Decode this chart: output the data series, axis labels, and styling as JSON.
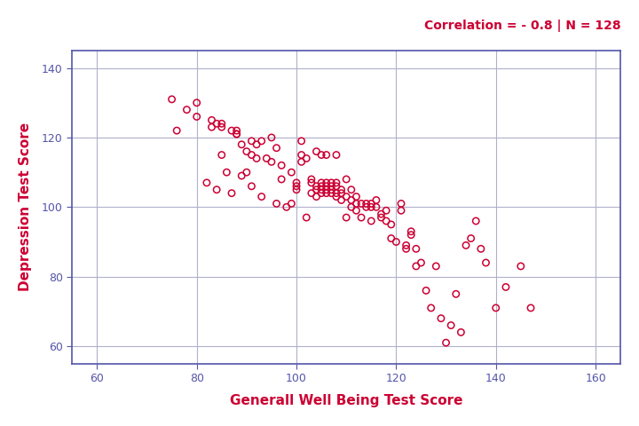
{
  "title_text": "Correlation = - 0.8 | N = 128",
  "title_color": "#CC0033",
  "xlabel": "Generall Well Being Test Score",
  "ylabel": "Depression Test Score",
  "axis_label_color": "#CC0033",
  "scatter_color": "#CC0033",
  "background_color": "#ffffff",
  "grid_color": "#b0b0cc",
  "spine_color": "#5555aa",
  "xlim": [
    55,
    165
  ],
  "ylim": [
    55,
    145
  ],
  "xticks": [
    60,
    80,
    100,
    120,
    140,
    160
  ],
  "yticks": [
    60,
    80,
    100,
    120,
    140
  ],
  "x": [
    75,
    76,
    80,
    82,
    84,
    85,
    85,
    86,
    87,
    88,
    89,
    90,
    91,
    91,
    92,
    93,
    93,
    94,
    95,
    95,
    96,
    96,
    97,
    97,
    98,
    99,
    99,
    100,
    100,
    100,
    101,
    101,
    101,
    102,
    102,
    103,
    103,
    103,
    104,
    104,
    104,
    104,
    105,
    105,
    105,
    105,
    105,
    106,
    106,
    106,
    106,
    106,
    107,
    107,
    107,
    107,
    108,
    108,
    108,
    108,
    108,
    109,
    109,
    109,
    110,
    110,
    110,
    111,
    111,
    111,
    112,
    112,
    112,
    113,
    113,
    114,
    114,
    115,
    115,
    115,
    116,
    116,
    117,
    117,
    118,
    118,
    119,
    119,
    120,
    121,
    121,
    122,
    122,
    123,
    123,
    124,
    124,
    125,
    126,
    127,
    128,
    129,
    130,
    131,
    132,
    133,
    134,
    135,
    136,
    137,
    138,
    140,
    142,
    145,
    147,
    78,
    80,
    83,
    83,
    84,
    85,
    87,
    88,
    88,
    89,
    90,
    91,
    92
  ],
  "y": [
    131,
    122,
    130,
    107,
    105,
    115,
    124,
    110,
    104,
    121,
    109,
    110,
    106,
    119,
    118,
    119,
    103,
    114,
    120,
    113,
    117,
    101,
    112,
    108,
    100,
    110,
    101,
    105,
    106,
    107,
    119,
    113,
    115,
    114,
    97,
    107,
    108,
    104,
    106,
    105,
    103,
    116,
    107,
    106,
    105,
    104,
    115,
    107,
    106,
    105,
    104,
    115,
    107,
    105,
    106,
    104,
    107,
    103,
    106,
    104,
    115,
    105,
    102,
    104,
    103,
    108,
    97,
    102,
    100,
    105,
    99,
    101,
    103,
    101,
    97,
    101,
    100,
    100,
    96,
    101,
    100,
    102,
    97,
    98,
    96,
    99,
    95,
    91,
    90,
    99,
    101,
    88,
    89,
    93,
    92,
    83,
    88,
    84,
    76,
    71,
    83,
    68,
    61,
    66,
    75,
    64,
    89,
    91,
    96,
    88,
    84,
    71,
    77,
    83,
    71,
    128,
    126,
    125,
    123,
    124,
    123,
    122,
    122,
    121,
    118,
    116,
    115,
    114
  ]
}
